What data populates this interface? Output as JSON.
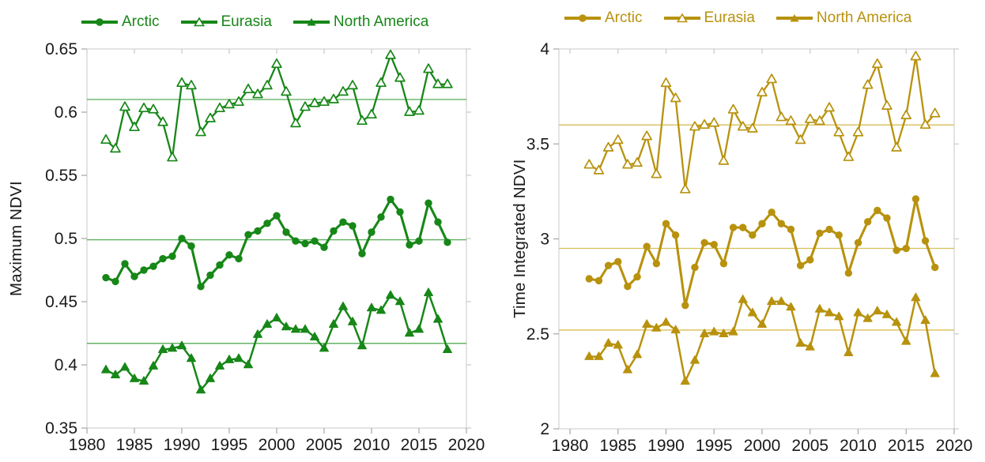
{
  "chart_data": [
    {
      "type": "line",
      "title": "",
      "ylabel": "Maximum NDVI",
      "xlabel": "",
      "grid": false,
      "legend_position": "top",
      "accent_color": "#178718",
      "mean_line_color": "#55ab55",
      "xlim": [
        1980,
        2020
      ],
      "ylim": [
        0.35,
        0.65
      ],
      "xticks": {
        "values": [
          1980,
          1985,
          1990,
          1995,
          2000,
          2005,
          2010,
          2015,
          2020
        ],
        "labels": [
          "1980",
          "1985",
          "1990",
          "1995",
          "2000",
          "2005",
          "2010",
          "2015",
          "2020"
        ]
      },
      "yticks": {
        "values": [
          0.65,
          0.6,
          0.55,
          0.5,
          0.45,
          0.4,
          0.35
        ],
        "labels": [
          "0.65",
          "0.6",
          "0.55",
          "0.5",
          "0.45",
          "0.4",
          "0.35"
        ]
      },
      "years": [
        1982,
        1983,
        1984,
        1985,
        1986,
        1987,
        1988,
        1989,
        1990,
        1991,
        1992,
        1993,
        1994,
        1995,
        1996,
        1997,
        1998,
        1999,
        2000,
        2001,
        2002,
        2003,
        2004,
        2005,
        2006,
        2007,
        2008,
        2009,
        2010,
        2011,
        2012,
        2013,
        2014,
        2015,
        2016,
        2017,
        2018
      ],
      "series": [
        {
          "name": "Arctic",
          "marker": "circle-filled",
          "mean": 0.499,
          "values": [
            0.469,
            0.466,
            0.48,
            0.47,
            0.475,
            0.478,
            0.484,
            0.486,
            0.5,
            0.494,
            0.462,
            0.471,
            0.479,
            0.487,
            0.484,
            0.503,
            0.506,
            0.512,
            0.518,
            0.505,
            0.498,
            0.496,
            0.498,
            0.493,
            0.506,
            0.513,
            0.51,
            0.488,
            0.505,
            0.517,
            0.531,
            0.521,
            0.495,
            0.498,
            0.528,
            0.513,
            0.497
          ]
        },
        {
          "name": "Eurasia",
          "marker": "triangle-open",
          "mean": 0.61,
          "values": [
            0.578,
            0.571,
            0.604,
            0.588,
            0.603,
            0.602,
            0.592,
            0.564,
            0.623,
            0.621,
            0.584,
            0.595,
            0.603,
            0.606,
            0.608,
            0.618,
            0.614,
            0.621,
            0.638,
            0.616,
            0.591,
            0.604,
            0.607,
            0.608,
            0.61,
            0.616,
            0.621,
            0.593,
            0.598,
            0.623,
            0.645,
            0.627,
            0.6,
            0.601,
            0.634,
            0.622,
            0.622
          ]
        },
        {
          "name": "North America",
          "marker": "triangle-filled",
          "mean": 0.417,
          "values": [
            0.396,
            0.392,
            0.398,
            0.389,
            0.387,
            0.399,
            0.412,
            0.413,
            0.415,
            0.405,
            0.38,
            0.389,
            0.399,
            0.404,
            0.405,
            0.4,
            0.424,
            0.432,
            0.437,
            0.43,
            0.428,
            0.428,
            0.422,
            0.413,
            0.432,
            0.446,
            0.434,
            0.415,
            0.445,
            0.443,
            0.455,
            0.45,
            0.425,
            0.428,
            0.457,
            0.436,
            0.412
          ]
        }
      ]
    },
    {
      "type": "line",
      "title": "",
      "ylabel": "Time Integrated NDVI",
      "xlabel": "",
      "grid": false,
      "legend_position": "top",
      "accent_color": "#B8920E",
      "mean_line_color": "#d9be57",
      "xlim": [
        1980,
        2020
      ],
      "ylim": [
        2,
        4
      ],
      "xticks": {
        "values": [
          1980,
          1985,
          1990,
          1995,
          2000,
          2005,
          2010,
          2015,
          2020
        ],
        "labels": [
          "1980",
          "1985",
          "1990",
          "1995",
          "2000",
          "2005",
          "2010",
          "2015",
          "2020"
        ]
      },
      "yticks": {
        "values": [
          4,
          3.5,
          3,
          2.5,
          2
        ],
        "labels": [
          "4",
          "3.5",
          "3",
          "2.5",
          "2"
        ]
      },
      "years": [
        1982,
        1983,
        1984,
        1985,
        1986,
        1987,
        1988,
        1989,
        1990,
        1991,
        1992,
        1993,
        1994,
        1995,
        1996,
        1997,
        1998,
        1999,
        2000,
        2001,
        2002,
        2003,
        2004,
        2005,
        2006,
        2007,
        2008,
        2009,
        2010,
        2011,
        2012,
        2013,
        2014,
        2015,
        2016,
        2017,
        2018
      ],
      "series": [
        {
          "name": "Arctic",
          "marker": "circle-filled",
          "mean": 2.95,
          "values": [
            2.79,
            2.78,
            2.86,
            2.88,
            2.75,
            2.8,
            2.96,
            2.87,
            3.08,
            3.02,
            2.65,
            2.85,
            2.98,
            2.97,
            2.87,
            3.06,
            3.06,
            3.02,
            3.08,
            3.14,
            3.08,
            3.05,
            2.86,
            2.89,
            3.03,
            3.05,
            3.02,
            2.82,
            2.98,
            3.09,
            3.15,
            3.11,
            2.94,
            2.95,
            3.21,
            2.99,
            2.85
          ]
        },
        {
          "name": "Eurasia",
          "marker": "triangle-open",
          "mean": 3.6,
          "values": [
            3.39,
            3.36,
            3.48,
            3.52,
            3.39,
            3.4,
            3.54,
            3.34,
            3.82,
            3.74,
            3.26,
            3.59,
            3.6,
            3.61,
            3.41,
            3.68,
            3.59,
            3.58,
            3.77,
            3.84,
            3.64,
            3.62,
            3.52,
            3.63,
            3.62,
            3.69,
            3.56,
            3.43,
            3.56,
            3.81,
            3.92,
            3.7,
            3.48,
            3.65,
            3.96,
            3.6,
            3.66
          ]
        },
        {
          "name": "North America",
          "marker": "triangle-filled",
          "mean": 2.52,
          "values": [
            2.38,
            2.38,
            2.45,
            2.44,
            2.31,
            2.39,
            2.55,
            2.53,
            2.56,
            2.52,
            2.25,
            2.36,
            2.5,
            2.51,
            2.5,
            2.51,
            2.68,
            2.61,
            2.55,
            2.67,
            2.67,
            2.64,
            2.45,
            2.43,
            2.63,
            2.61,
            2.59,
            2.4,
            2.61,
            2.58,
            2.62,
            2.6,
            2.56,
            2.46,
            2.69,
            2.57,
            2.29
          ]
        }
      ]
    }
  ]
}
